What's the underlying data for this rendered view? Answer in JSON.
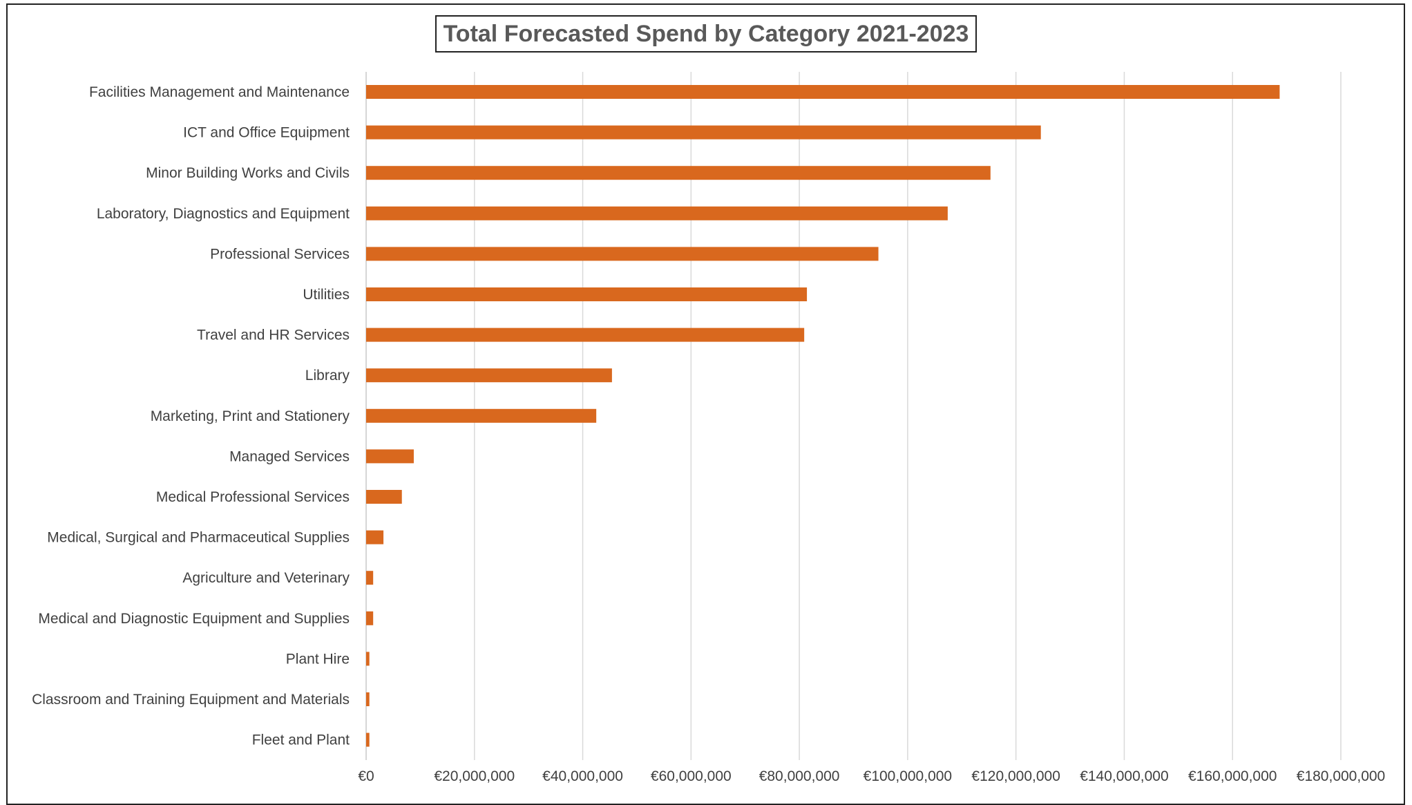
{
  "chart_data": {
    "type": "bar",
    "orientation": "horizontal",
    "title": "Total Forecasted Spend by Category 2021-2023",
    "xlabel": "",
    "ylabel": "",
    "xlim": [
      0,
      180000000
    ],
    "x_ticks": [
      0,
      20000000,
      40000000,
      60000000,
      80000000,
      100000000,
      120000000,
      140000000,
      160000000,
      180000000
    ],
    "x_tick_labels": [
      "€0",
      "€20,000,000",
      "€40,000,000",
      "€60,000,000",
      "€80,000,000",
      "€100,000,000",
      "€120,000,000",
      "€140,000,000",
      "€160,000,000",
      "€180,000,000"
    ],
    "grid": "vertical",
    "legend": "none",
    "bar_color": "#D9681E",
    "categories": [
      "Facilities Management and Maintenance",
      "ICT and Office Equipment",
      "Minor Building Works and Civils",
      "Laboratory, Diagnostics and Equipment",
      "Professional Services",
      "Utilities",
      "Travel and HR Services",
      "Library",
      "Marketing, Print and Stationery",
      "Managed Services",
      "Medical Professional Services",
      "Medical, Surgical and Pharmaceutical Supplies",
      "Agriculture and Veterinary",
      "Medical and Diagnostic Equipment and Supplies",
      "Plant Hire",
      "Classroom and Training Equipment and Materials",
      "Fleet and Plant"
    ],
    "values": [
      168700000,
      124600000,
      115300000,
      107400000,
      94600000,
      81400000,
      80900000,
      45400000,
      42500000,
      8800000,
      6600000,
      3200000,
      1300000,
      1300000,
      600000,
      600000,
      600000
    ]
  }
}
